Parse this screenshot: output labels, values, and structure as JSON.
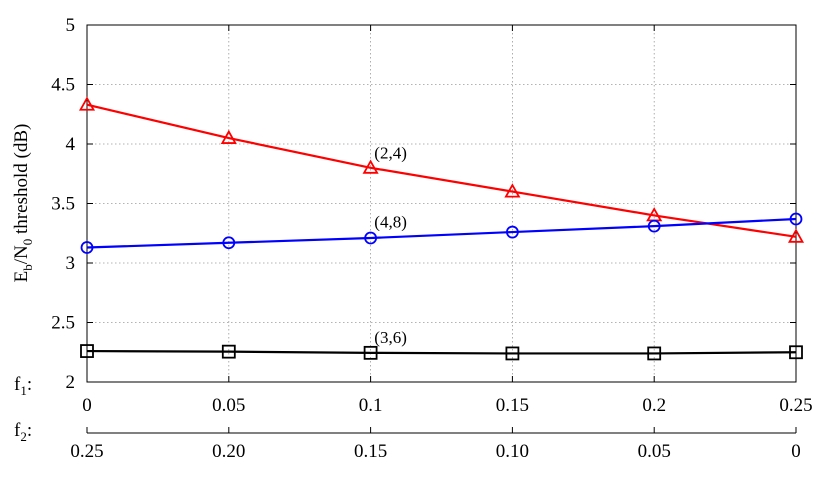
{
  "chart_data": {
    "type": "line",
    "ylabel": "E_b/N_0 threshold (dB)",
    "ylabel_parts": [
      "E",
      "b",
      "/N",
      "0",
      " threshold (dB)"
    ],
    "ylim": [
      2,
      5
    ],
    "yticks": [
      "2",
      "2.5",
      "3",
      "3.5",
      "4",
      "4.5",
      "5"
    ],
    "x": [
      0,
      0.05,
      0.1,
      0.15,
      0.2,
      0.25
    ],
    "xlim": [
      0,
      0.25
    ],
    "x_axes": [
      {
        "name": "f1",
        "label_main": "f",
        "label_sub": "1",
        "label_suffix": ":",
        "ticks": [
          "0",
          "0.05",
          "0.1",
          "0.15",
          "0.2",
          "0.25"
        ]
      },
      {
        "name": "f2",
        "label_main": "f",
        "label_sub": "2",
        "label_suffix": ":",
        "ticks": [
          "0.25",
          "0.20",
          "0.15",
          "0.10",
          "0.05",
          "0"
        ]
      }
    ],
    "grid": true,
    "series": [
      {
        "name": "(2,4)",
        "color": "#ff0000",
        "marker": "triangle",
        "values": [
          4.33,
          4.05,
          3.8,
          3.6,
          3.4,
          3.22
        ]
      },
      {
        "name": "(4,8)",
        "color": "#0000ff",
        "marker": "circle",
        "values": [
          3.13,
          3.17,
          3.21,
          3.26,
          3.31,
          3.37
        ]
      },
      {
        "name": "(3,6)",
        "color": "#000000",
        "marker": "square",
        "values": [
          2.26,
          2.255,
          2.245,
          2.24,
          2.24,
          2.25
        ]
      }
    ],
    "annotations": [
      {
        "text": "(2,4)",
        "x": 0.1,
        "y": 3.93
      },
      {
        "text": "(4,8)",
        "x": 0.1,
        "y": 3.35
      },
      {
        "text": "(3,6)",
        "x": 0.1,
        "y": 2.38
      }
    ]
  }
}
